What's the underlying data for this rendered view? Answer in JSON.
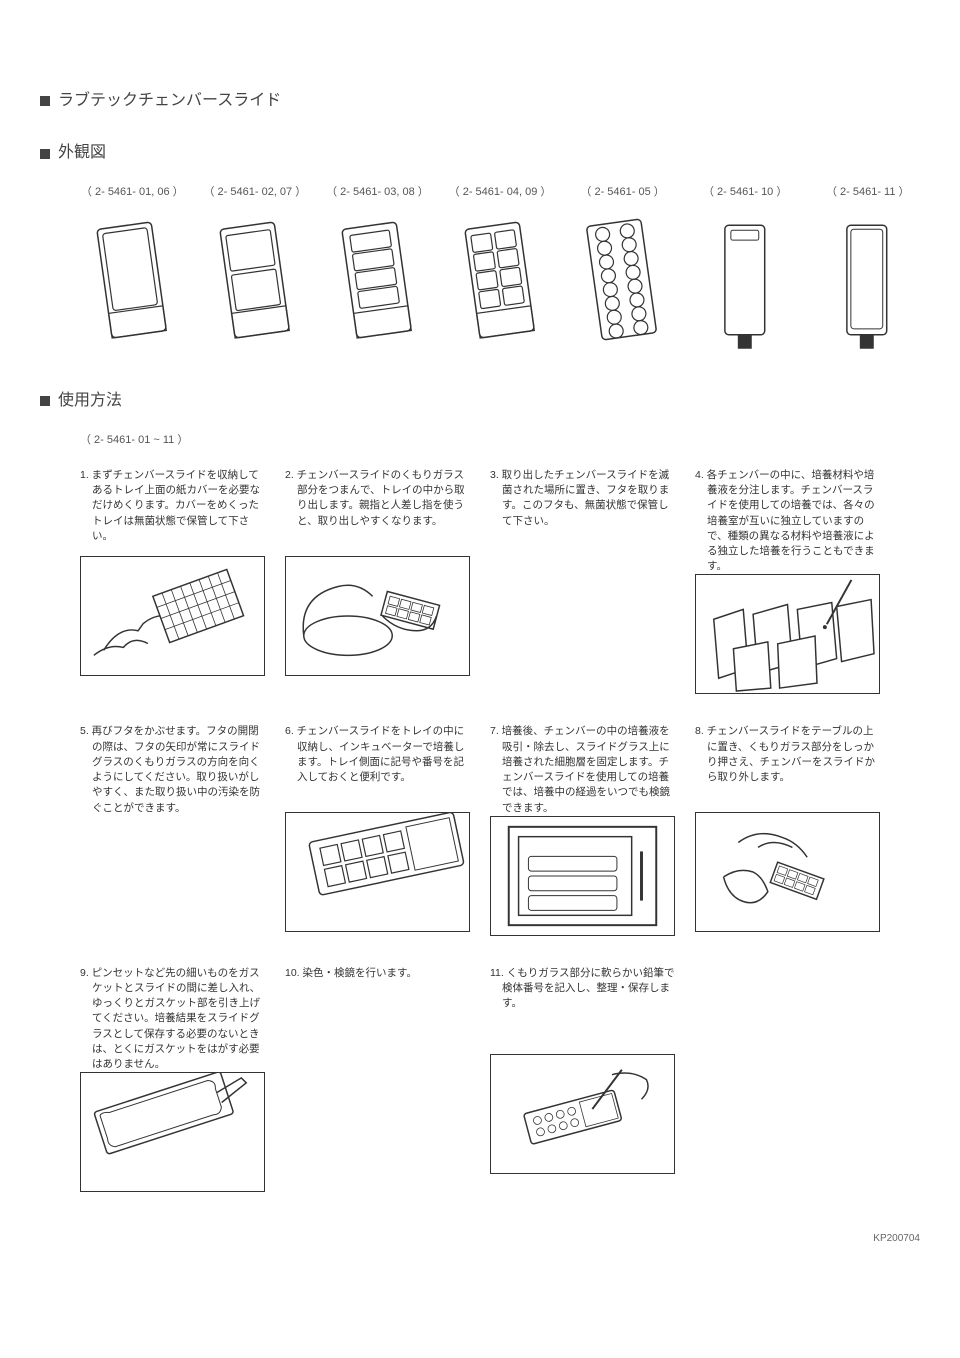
{
  "title": "ラブテックチェンバースライド",
  "heading_appearance": "外観図",
  "heading_usage": "使用方法",
  "usage_ref": "（ 2- 5461- 01 ~ 11 ）",
  "footer": "KP200704",
  "refs": [
    "（ 2- 5461- 01, 06 ）",
    "（ 2- 5461- 02, 07 ）",
    "（ 2- 5461- 03, 08 ）",
    "（ 2- 5461- 04, 09 ）",
    "（ 2- 5461- 05 ）",
    "（ 2- 5461- 10 ）",
    "（ 2- 5461- 11 ）"
  ],
  "steps": [
    {
      "n": "1.",
      "text": "まずチェンバースライドを収納してあるトレイ上面の紙カバーを必要なだけめくります。カバーをめくったトレイは無菌状態で保管して下さい。",
      "img": true
    },
    {
      "n": "2.",
      "text": "チェンバースライドのくもりガラス部分をつまんで、トレイの中から取り出します。親指と人差し指を使うと、取り出しやすくなります。",
      "img": true
    },
    {
      "n": "3.",
      "text": "取り出したチェンバースライドを滅菌された場所に置き、フタを取ります。このフタも、無菌状態で保管して下さい。",
      "img": false
    },
    {
      "n": "4.",
      "text": "各チェンバーの中に、培養材料や培養液を分注します。チェンバースライドを使用しての培養では、各々の培養室が互いに独立していますので、種類の異なる材料や培養液による独立した培養を行うこともできます。",
      "img": true
    },
    {
      "n": "5.",
      "text": "再びフタをかぶせます。フタの開閉の際は、フタの矢印が常にスライドグラスのくもりガラスの方向を向くようにしてください。取り扱いがしやすく、また取り扱い中の汚染を防ぐことができます。",
      "img": false
    },
    {
      "n": "6.",
      "text": "チェンバースライドをトレイの中に収納し、インキュベーターで培養します。トレイ側面に記号や番号を記入しておくと便利です。",
      "img": true
    },
    {
      "n": "7.",
      "text": "培養後、チェンバーの中の培養液を吸引・除去し、スライドグラス上に培養された細胞層を固定します。チェンバースライドを使用しての培養では、培養中の経過をいつでも検鏡できます。",
      "img": true
    },
    {
      "n": "8.",
      "text": "チェンバースライドをテーブルの上に置き、くもりガラス部分をしっかり押さえ、チェンバーをスライドから取り外します。",
      "img": true
    },
    {
      "n": "9.",
      "text": "ピンセットなど先の細いものをガスケットとスライドの間に差し入れ、ゆっくりとガスケット部を引き上げてください。培養結果をスライドグラスとして保存する必要のないときは、とくにガスケットをはがす必要はありません。",
      "img": true
    },
    {
      "n": "10.",
      "text": "染色・検鏡を行います。",
      "img": false
    },
    {
      "n": "11.",
      "text": "くもりガラス部分に軟らかい鉛筆で検体番号を記入し、整理・保存します。",
      "img": true
    },
    {
      "n": "",
      "text": "",
      "img": false
    }
  ],
  "colors": {
    "stroke": "#333333",
    "bg": "#ffffff",
    "text": "#333333"
  }
}
